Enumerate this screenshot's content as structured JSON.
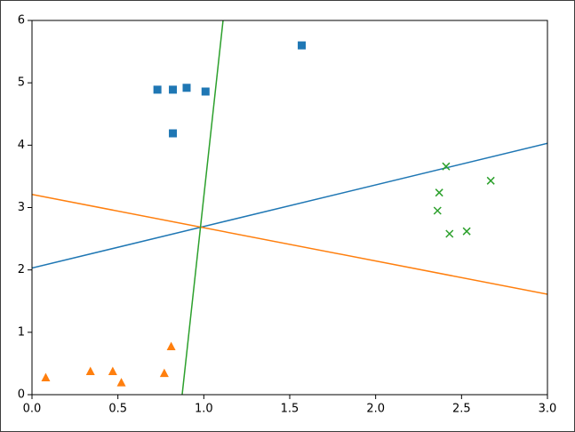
{
  "chart_data": {
    "type": "scatter",
    "xlim": [
      0,
      3
    ],
    "ylim": [
      0,
      6
    ],
    "xticks": [
      {
        "value": 0,
        "label": "0.0"
      },
      {
        "value": 0.5,
        "label": "0.5"
      },
      {
        "value": 1,
        "label": "1.0"
      },
      {
        "value": 1.5,
        "label": "1.5"
      },
      {
        "value": 2,
        "label": "2.0"
      },
      {
        "value": 2.5,
        "label": "2.5"
      },
      {
        "value": 3,
        "label": "3.0"
      }
    ],
    "yticks": [
      0,
      1,
      2,
      3,
      4,
      5,
      6
    ],
    "series": [
      {
        "color": "#1f77b4",
        "marker": "square",
        "x": [
          0.73,
          0.82,
          0.9,
          1.01,
          0.82,
          1.57
        ],
        "values": [
          4.89,
          4.89,
          4.92,
          4.86,
          4.19,
          5.6
        ]
      },
      {
        "color": "#ff7f0e",
        "marker": "triangle",
        "x": [
          0.08,
          0.34,
          0.47,
          0.52,
          0.77,
          0.81
        ],
        "values": [
          0.27,
          0.37,
          0.37,
          0.19,
          0.34,
          0.77
        ]
      },
      {
        "color": "#2ca02c",
        "marker": "x",
        "x": [
          2.41,
          2.37,
          2.36,
          2.43,
          2.53,
          2.67
        ],
        "values": [
          3.66,
          3.24,
          2.95,
          2.58,
          2.62,
          3.43
        ]
      }
    ],
    "lines": [
      {
        "color": "#1f77b4",
        "x": [
          0,
          3
        ],
        "values": [
          2.03,
          4.03
        ]
      },
      {
        "color": "#ff7f0e",
        "x": [
          0,
          3
        ],
        "values": [
          3.21,
          1.61
        ]
      },
      {
        "color": "#2ca02c",
        "x": [
          0.874,
          1.112
        ],
        "values": [
          0,
          6
        ]
      }
    ]
  }
}
